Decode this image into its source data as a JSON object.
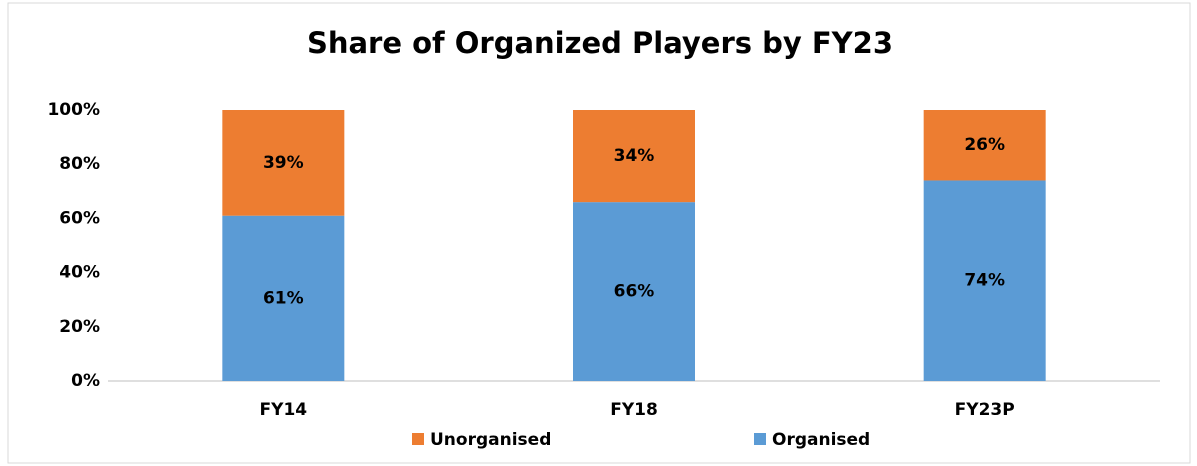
{
  "chart_data": {
    "type": "stacked_bar",
    "title": "Share of Organized Players by FY23",
    "categories": [
      "FY14",
      "FY18",
      "FY23P"
    ],
    "series": [
      {
        "name": "Organised",
        "color": "#5b9bd5",
        "values": [
          61,
          66,
          74
        ],
        "value_labels": [
          "61%",
          "66%",
          "74%"
        ]
      },
      {
        "name": "Unorganised",
        "color": "#ed7d31",
        "values": [
          39,
          34,
          26
        ],
        "value_labels": [
          "39%",
          "34%",
          "26%"
        ]
      }
    ],
    "ylim": [
      0,
      100
    ],
    "yticks": [
      {
        "value": 0,
        "label": "0%"
      },
      {
        "value": 20,
        "label": "20%"
      },
      {
        "value": 40,
        "label": "40%"
      },
      {
        "value": 60,
        "label": "60%"
      },
      {
        "value": 80,
        "label": "80%"
      },
      {
        "value": 100,
        "label": "100%"
      }
    ],
    "grid": false,
    "legend": "bottom"
  }
}
